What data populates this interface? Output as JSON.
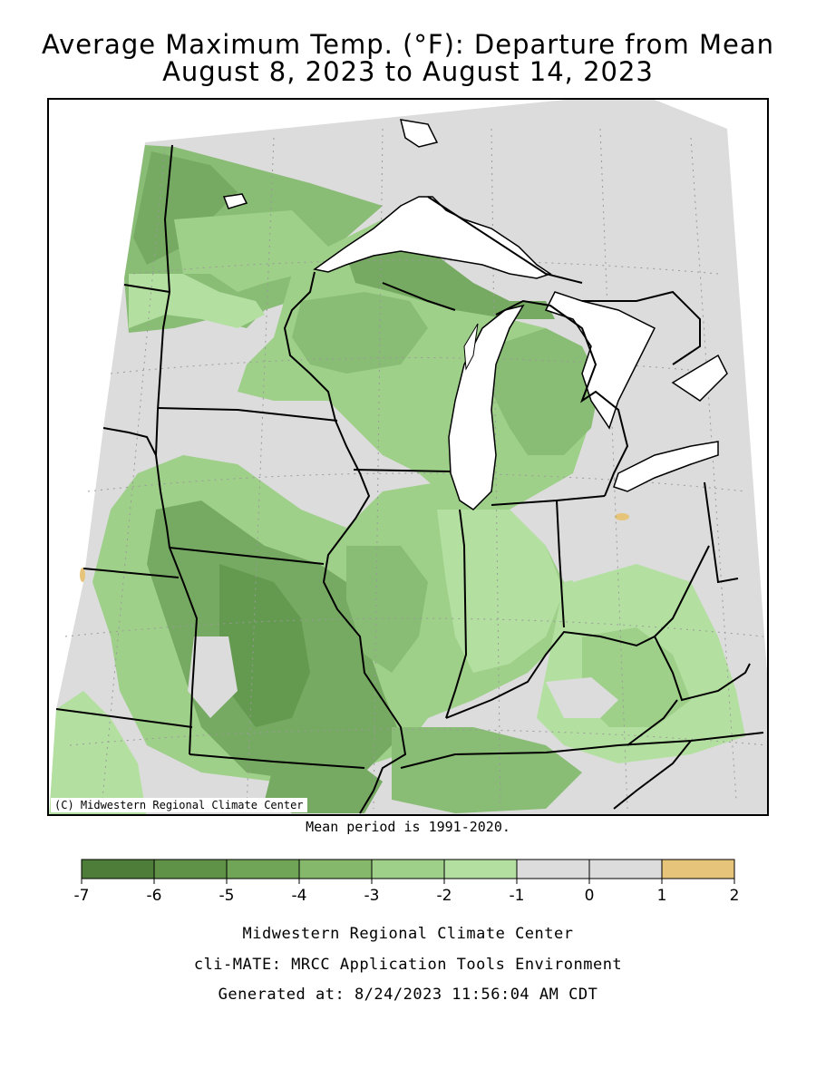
{
  "title": {
    "line1": "Average Maximum Temp. (°F): Departure from Mean",
    "line2": "August 8, 2023 to August 14, 2023"
  },
  "map": {
    "copyright": "(C) Midwestern Regional Climate Center",
    "mean_note": "Mean period is 1991-2020.",
    "colors": {
      "water": "#ffffff",
      "gray_0_to_1": "#dcdcdc",
      "green_m1_to_0": "#b3e0a0",
      "green_m2_to_m1": "#9fd08a",
      "green_m3_to_m2": "#89bc75",
      "green_m4_to_m3": "#76aa62",
      "green_m5_to_m4": "#649950",
      "green_m6_to_m5": "#528a40",
      "orange_1_to_2": "#e6c47a"
    }
  },
  "legend": {
    "ticks": [
      "-7",
      "-6",
      "-5",
      "-4",
      "-3",
      "-2",
      "-1",
      "0",
      "1",
      "2"
    ],
    "colors": [
      "#4e7d3a",
      "#5f9147",
      "#70a558",
      "#86b86c",
      "#9fd08a",
      "#b3e0a0",
      "#dcdcdc",
      "#dcdcdc",
      "#e6c47a"
    ]
  },
  "credits": {
    "line1": "Midwestern Regional Climate Center",
    "line2": "cli-MATE: MRCC Application Tools Environment",
    "line3": "Generated at: 8/24/2023 11:56:04 AM CDT"
  }
}
